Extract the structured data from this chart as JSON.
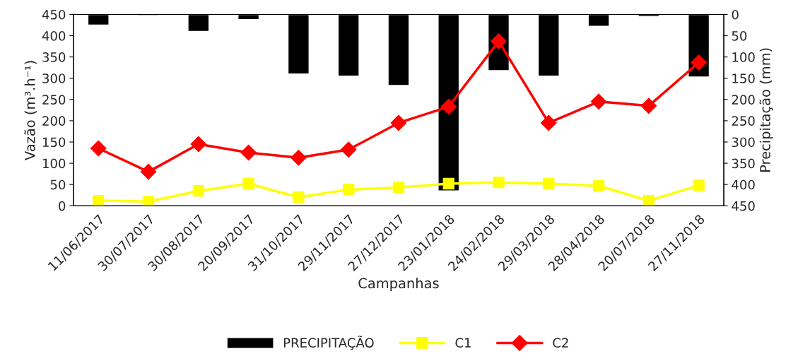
{
  "chart_data": {
    "type": "line",
    "xlabel": "Campanhas",
    "ylabel": "Vazão (m³.h⁻¹)",
    "y2label": "Precipitação (mm)",
    "categories": [
      "11/06/2017",
      "30/07/2017",
      "30/08/2017",
      "20/09/2017",
      "31/10/2017",
      "29/11/2017",
      "27/12/2017",
      "23/01/2018",
      "24/02/2018",
      "29/03/2018",
      "28/04/2018",
      "20/07/2018",
      "27/11/2018"
    ],
    "series": [
      {
        "name": "PRECIPITAÇÃO",
        "type": "bar",
        "axis": "y2",
        "color": "#000000",
        "values": [
          25,
          3,
          40,
          12,
          140,
          145,
          167,
          415,
          132,
          145,
          28,
          5,
          147
        ]
      },
      {
        "name": "C1",
        "color": "#ffff00",
        "marker": "square",
        "values": [
          12,
          10,
          35,
          52,
          20,
          38,
          43,
          52,
          55,
          52,
          47,
          12,
          48
        ]
      },
      {
        "name": "C2",
        "color": "#ff0000",
        "marker": "diamond",
        "values": [
          135,
          80,
          145,
          125,
          113,
          132,
          195,
          233,
          387,
          195,
          245,
          235,
          337
        ]
      }
    ],
    "ylim": [
      0,
      450
    ],
    "yticks": [
      0,
      50,
      100,
      150,
      200,
      250,
      300,
      350,
      400,
      450
    ],
    "y2lim": [
      450,
      0
    ],
    "y2ticks": [
      0,
      50,
      100,
      150,
      200,
      250,
      300,
      350,
      400,
      450
    ],
    "grid": false,
    "legend": "bottom",
    "line_style": "solid"
  }
}
